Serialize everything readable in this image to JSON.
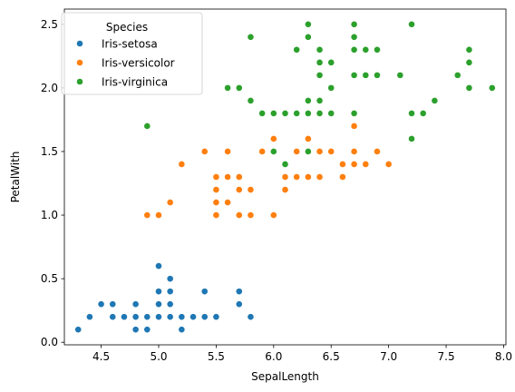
{
  "chart_data": {
    "type": "scatter",
    "xlabel": "SepalLength",
    "ylabel": "PetalWith",
    "xlim": [
      4.18,
      8.02
    ],
    "ylim": [
      -0.02,
      2.62
    ],
    "xticks": [
      "4.5",
      "5.0",
      "5.5",
      "6.0",
      "6.5",
      "7.0",
      "7.5",
      "8.0"
    ],
    "yticks": [
      "0.0",
      "0.5",
      "1.0",
      "1.5",
      "2.0",
      "2.5"
    ],
    "grid": false,
    "legend": {
      "title": "Species",
      "placement": "top-left"
    },
    "series": [
      {
        "name": "Iris-setosa",
        "color": "#1f77b4",
        "points": [
          [
            4.3,
            0.1
          ],
          [
            4.4,
            0.2
          ],
          [
            4.5,
            0.3
          ],
          [
            4.6,
            0.2
          ],
          [
            4.6,
            0.3
          ],
          [
            4.7,
            0.2
          ],
          [
            4.8,
            0.1
          ],
          [
            4.8,
            0.2
          ],
          [
            4.8,
            0.3
          ],
          [
            4.9,
            0.1
          ],
          [
            4.9,
            0.2
          ],
          [
            5.0,
            0.2
          ],
          [
            5.0,
            0.3
          ],
          [
            5.0,
            0.4
          ],
          [
            5.0,
            0.6
          ],
          [
            5.1,
            0.2
          ],
          [
            5.1,
            0.3
          ],
          [
            5.1,
            0.4
          ],
          [
            5.1,
            0.5
          ],
          [
            5.2,
            0.1
          ],
          [
            5.2,
            0.2
          ],
          [
            5.3,
            0.2
          ],
          [
            5.4,
            0.2
          ],
          [
            5.4,
            0.4
          ],
          [
            5.5,
            0.2
          ],
          [
            5.7,
            0.3
          ],
          [
            5.7,
            0.4
          ],
          [
            5.8,
            0.2
          ]
        ]
      },
      {
        "name": "Iris-versicolor",
        "color": "#ff7f0e",
        "points": [
          [
            4.9,
            1.0
          ],
          [
            5.0,
            1.0
          ],
          [
            5.1,
            1.1
          ],
          [
            5.2,
            1.4
          ],
          [
            5.4,
            1.5
          ],
          [
            5.5,
            1.0
          ],
          [
            5.5,
            1.1
          ],
          [
            5.5,
            1.2
          ],
          [
            5.5,
            1.3
          ],
          [
            5.6,
            1.1
          ],
          [
            5.6,
            1.3
          ],
          [
            5.6,
            1.5
          ],
          [
            5.7,
            1.0
          ],
          [
            5.7,
            1.2
          ],
          [
            5.7,
            1.3
          ],
          [
            5.8,
            1.0
          ],
          [
            5.8,
            1.2
          ],
          [
            5.9,
            1.5
          ],
          [
            6.0,
            1.0
          ],
          [
            6.0,
            1.5
          ],
          [
            6.0,
            1.6
          ],
          [
            6.1,
            1.2
          ],
          [
            6.1,
            1.3
          ],
          [
            6.1,
            1.4
          ],
          [
            6.2,
            1.3
          ],
          [
            6.2,
            1.5
          ],
          [
            6.3,
            1.3
          ],
          [
            6.3,
            1.5
          ],
          [
            6.3,
            1.6
          ],
          [
            6.4,
            1.3
          ],
          [
            6.4,
            1.5
          ],
          [
            6.5,
            1.5
          ],
          [
            6.6,
            1.3
          ],
          [
            6.6,
            1.4
          ],
          [
            6.7,
            1.4
          ],
          [
            6.7,
            1.5
          ],
          [
            6.7,
            1.7
          ],
          [
            6.8,
            1.4
          ],
          [
            6.9,
            1.5
          ],
          [
            7.0,
            1.4
          ]
        ]
      },
      {
        "name": "Iris-virginica",
        "color": "#2ca02c",
        "points": [
          [
            4.9,
            1.7
          ],
          [
            5.6,
            2.0
          ],
          [
            5.7,
            2.0
          ],
          [
            5.8,
            1.9
          ],
          [
            5.8,
            2.4
          ],
          [
            5.9,
            1.8
          ],
          [
            6.0,
            1.5
          ],
          [
            6.0,
            1.8
          ],
          [
            6.1,
            1.4
          ],
          [
            6.1,
            1.8
          ],
          [
            6.2,
            1.8
          ],
          [
            6.2,
            2.3
          ],
          [
            6.3,
            1.5
          ],
          [
            6.3,
            1.8
          ],
          [
            6.3,
            1.9
          ],
          [
            6.3,
            2.4
          ],
          [
            6.3,
            2.5
          ],
          [
            6.4,
            1.8
          ],
          [
            6.4,
            1.9
          ],
          [
            6.4,
            2.1
          ],
          [
            6.4,
            2.2
          ],
          [
            6.4,
            2.3
          ],
          [
            6.5,
            1.8
          ],
          [
            6.5,
            2.0
          ],
          [
            6.5,
            2.2
          ],
          [
            6.7,
            1.8
          ],
          [
            6.7,
            2.1
          ],
          [
            6.7,
            2.3
          ],
          [
            6.7,
            2.4
          ],
          [
            6.7,
            2.5
          ],
          [
            6.8,
            2.1
          ],
          [
            6.8,
            2.3
          ],
          [
            6.9,
            2.1
          ],
          [
            6.9,
            2.3
          ],
          [
            7.1,
            2.1
          ],
          [
            7.2,
            1.6
          ],
          [
            7.2,
            1.8
          ],
          [
            7.2,
            2.5
          ],
          [
            7.3,
            1.8
          ],
          [
            7.4,
            1.9
          ],
          [
            7.6,
            2.1
          ],
          [
            7.7,
            2.0
          ],
          [
            7.7,
            2.2
          ],
          [
            7.7,
            2.3
          ],
          [
            7.9,
            2.0
          ]
        ]
      }
    ]
  }
}
